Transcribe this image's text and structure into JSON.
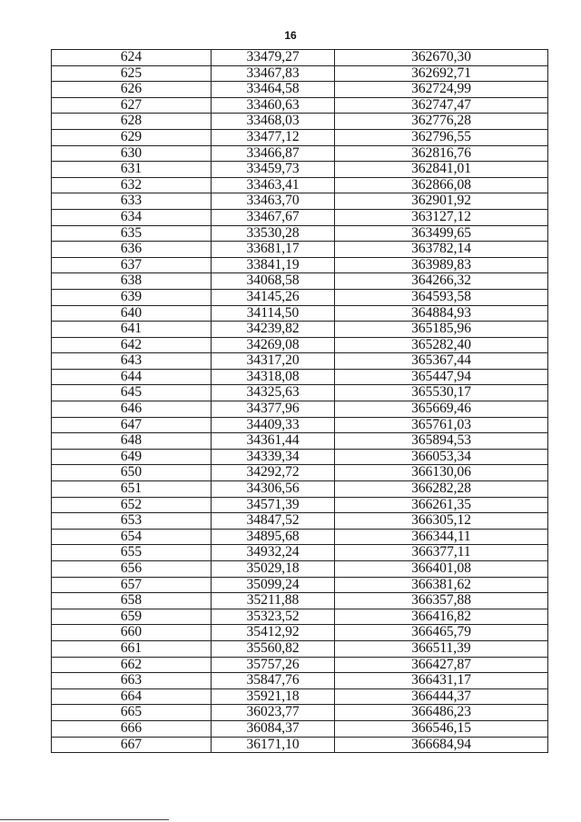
{
  "page_number": "16",
  "table": {
    "rows": [
      [
        "624",
        "33479,27",
        "362670,30"
      ],
      [
        "625",
        "33467,83",
        "362692,71"
      ],
      [
        "626",
        "33464,58",
        "362724,99"
      ],
      [
        "627",
        "33460,63",
        "362747,47"
      ],
      [
        "628",
        "33468,03",
        "362776,28"
      ],
      [
        "629",
        "33477,12",
        "362796,55"
      ],
      [
        "630",
        "33466,87",
        "362816,76"
      ],
      [
        "631",
        "33459,73",
        "362841,01"
      ],
      [
        "632",
        "33463,41",
        "362866,08"
      ],
      [
        "633",
        "33463,70",
        "362901,92"
      ],
      [
        "634",
        "33467,67",
        "363127,12"
      ],
      [
        "635",
        "33530,28",
        "363499,65"
      ],
      [
        "636",
        "33681,17",
        "363782,14"
      ],
      [
        "637",
        "33841,19",
        "363989,83"
      ],
      [
        "638",
        "34068,58",
        "364266,32"
      ],
      [
        "639",
        "34145,26",
        "364593,58"
      ],
      [
        "640",
        "34114,50",
        "364884,93"
      ],
      [
        "641",
        "34239,82",
        "365185,96"
      ],
      [
        "642",
        "34269,08",
        "365282,40"
      ],
      [
        "643",
        "34317,20",
        "365367,44"
      ],
      [
        "644",
        "34318,08",
        "365447,94"
      ],
      [
        "645",
        "34325,63",
        "365530,17"
      ],
      [
        "646",
        "34377,96",
        "365669,46"
      ],
      [
        "647",
        "34409,33",
        "365761,03"
      ],
      [
        "648",
        "34361,44",
        "365894,53"
      ],
      [
        "649",
        "34339,34",
        "366053,34"
      ],
      [
        "650",
        "34292,72",
        "366130,06"
      ],
      [
        "651",
        "34306,56",
        "366282,28"
      ],
      [
        "652",
        "34571,39",
        "366261,35"
      ],
      [
        "653",
        "34847,52",
        "366305,12"
      ],
      [
        "654",
        "34895,68",
        "366344,11"
      ],
      [
        "655",
        "34932,24",
        "366377,11"
      ],
      [
        "656",
        "35029,18",
        "366401,08"
      ],
      [
        "657",
        "35099,24",
        "366381,62"
      ],
      [
        "658",
        "35211,88",
        "366357,88"
      ],
      [
        "659",
        "35323,52",
        "366416,82"
      ],
      [
        "660",
        "35412,92",
        "366465,79"
      ],
      [
        "661",
        "35560,82",
        "366511,39"
      ],
      [
        "662",
        "35757,26",
        "366427,87"
      ],
      [
        "663",
        "35847,76",
        "366431,17"
      ],
      [
        "664",
        "35921,18",
        "366444,37"
      ],
      [
        "665",
        "36023,77",
        "366486,23"
      ],
      [
        "666",
        "36084,37",
        "366546,15"
      ],
      [
        "667",
        "36171,10",
        "366684,94"
      ]
    ]
  }
}
